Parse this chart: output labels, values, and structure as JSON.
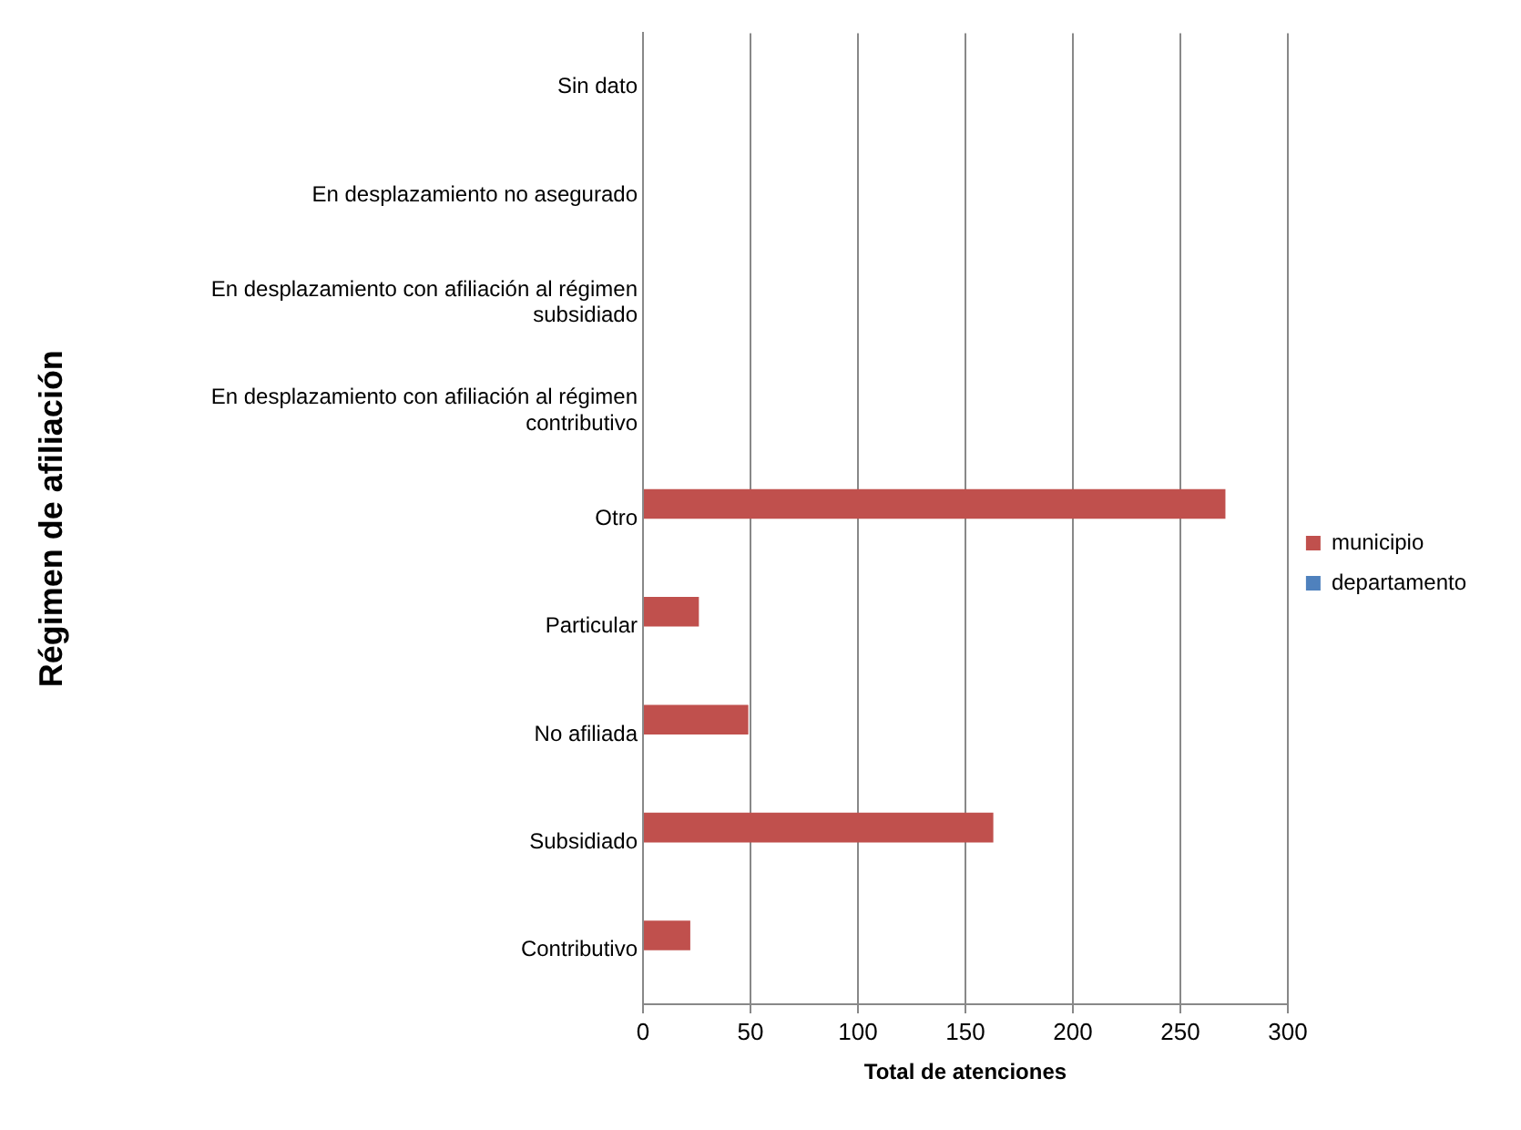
{
  "chart_data": {
    "type": "bar",
    "orientation": "horizontal",
    "xlabel": "Total de atenciones",
    "ylabel": "Régimen de afiliación",
    "categories": [
      "Sin dato",
      "En desplazamiento no asegurado",
      "En desplazamiento con afiliación al régimen subsidiado",
      "En desplazamiento con afiliación al régimen contributivo",
      "Otro",
      "Particular",
      "No afiliada",
      "Subsidiado",
      "Contributivo"
    ],
    "series": [
      {
        "name": "municipio",
        "color": "#c0504d",
        "values": [
          null,
          null,
          null,
          null,
          271,
          26,
          49,
          163,
          22
        ]
      },
      {
        "name": "departamento",
        "color": "#4f81bd",
        "values": [
          null,
          null,
          null,
          null,
          null,
          null,
          null,
          null,
          null
        ]
      }
    ],
    "xlim": [
      0,
      300
    ],
    "xticks": [
      0,
      50,
      100,
      150,
      200,
      250,
      300
    ],
    "grid": "x",
    "legend": "right"
  }
}
